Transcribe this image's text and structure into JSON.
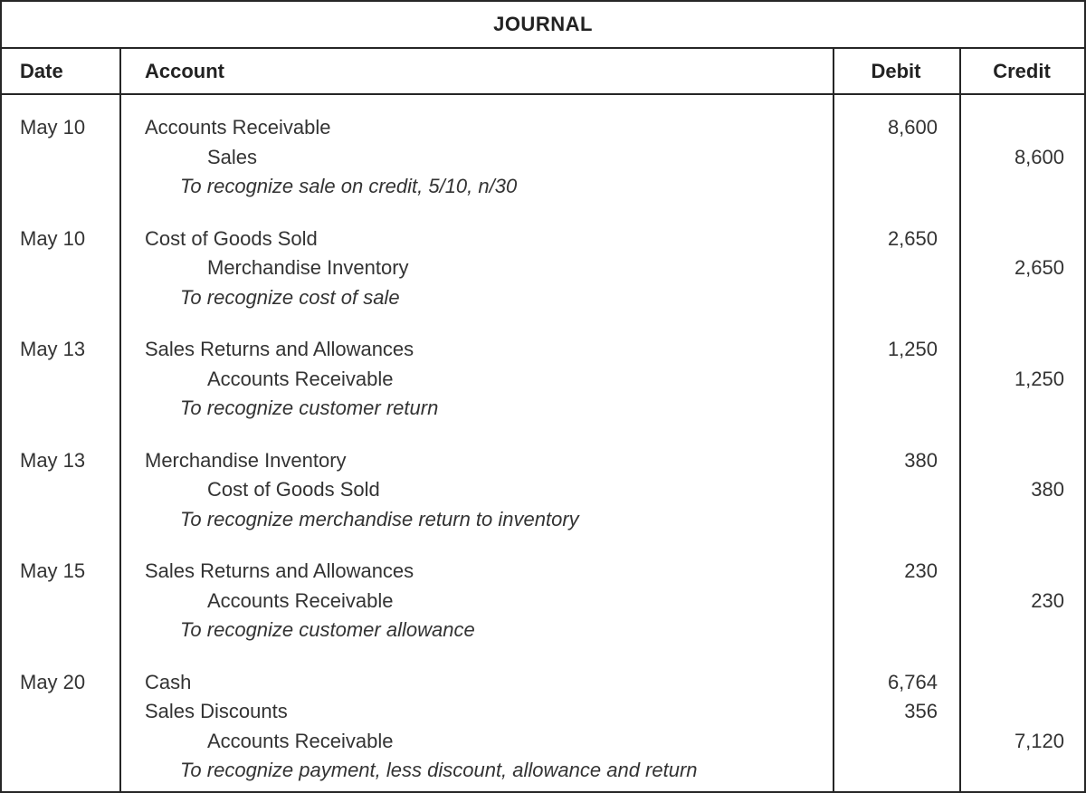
{
  "table": {
    "title": "JOURNAL",
    "columns": {
      "date": "Date",
      "account": "Account",
      "debit": "Debit",
      "credit": "Credit"
    },
    "entries": [
      {
        "date": "May 10",
        "lines": [
          {
            "type": "debit",
            "text": "Accounts Receivable",
            "debit": "8,600",
            "credit": ""
          },
          {
            "type": "credit",
            "text": "Sales",
            "debit": "",
            "credit": "8,600"
          },
          {
            "type": "desc",
            "text": "To recognize sale on credit, 5/10, n/30",
            "debit": "",
            "credit": ""
          }
        ]
      },
      {
        "date": "May 10",
        "lines": [
          {
            "type": "debit",
            "text": "Cost of Goods Sold",
            "debit": "2,650",
            "credit": ""
          },
          {
            "type": "credit",
            "text": "Merchandise Inventory",
            "debit": "",
            "credit": "2,650"
          },
          {
            "type": "desc",
            "text": "To recognize cost of sale",
            "debit": "",
            "credit": ""
          }
        ]
      },
      {
        "date": "May 13",
        "lines": [
          {
            "type": "debit",
            "text": "Sales Returns and Allowances",
            "debit": "1,250",
            "credit": ""
          },
          {
            "type": "credit",
            "text": "Accounts Receivable",
            "debit": "",
            "credit": "1,250"
          },
          {
            "type": "desc",
            "text": "To recognize customer return",
            "debit": "",
            "credit": ""
          }
        ]
      },
      {
        "date": "May 13",
        "lines": [
          {
            "type": "debit",
            "text": "Merchandise Inventory",
            "debit": "380",
            "credit": ""
          },
          {
            "type": "credit",
            "text": "Cost of Goods Sold",
            "debit": "",
            "credit": "380"
          },
          {
            "type": "desc",
            "text": "To recognize merchandise return to inventory",
            "debit": "",
            "credit": ""
          }
        ]
      },
      {
        "date": "May 15",
        "lines": [
          {
            "type": "debit",
            "text": "Sales Returns and Allowances",
            "debit": "230",
            "credit": ""
          },
          {
            "type": "credit",
            "text": "Accounts Receivable",
            "debit": "",
            "credit": "230"
          },
          {
            "type": "desc",
            "text": "To recognize customer allowance",
            "debit": "",
            "credit": ""
          }
        ]
      },
      {
        "date": "May 20",
        "lines": [
          {
            "type": "debit",
            "text": "Cash",
            "debit": "6,764",
            "credit": ""
          },
          {
            "type": "debit",
            "text": "Sales Discounts",
            "debit": "356",
            "credit": ""
          },
          {
            "type": "credit",
            "text": "Accounts Receivable",
            "debit": "",
            "credit": "7,120"
          },
          {
            "type": "desc",
            "text": "To recognize payment, less discount, allowance and return",
            "debit": "",
            "credit": ""
          }
        ]
      }
    ]
  }
}
